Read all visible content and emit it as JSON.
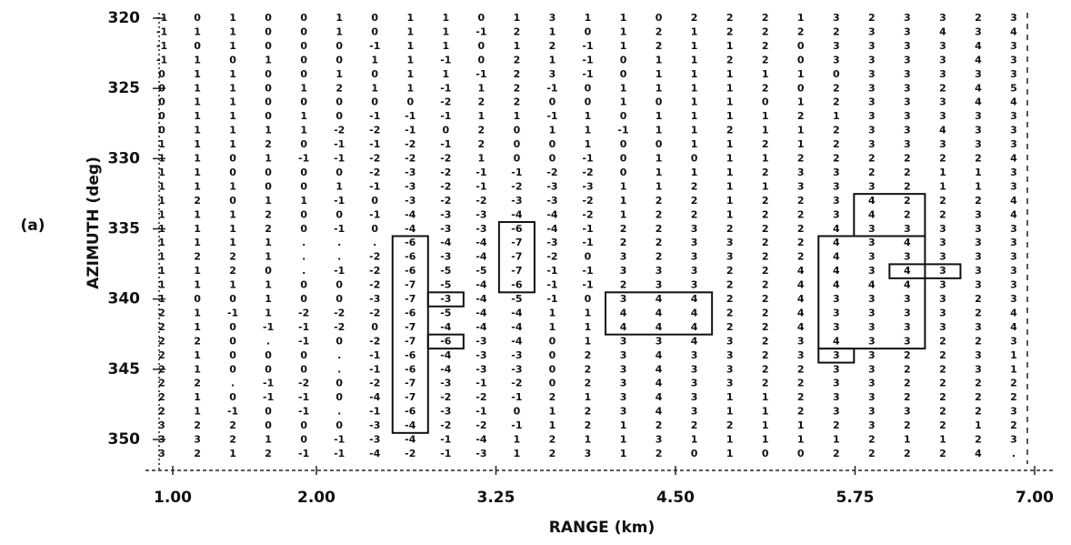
{
  "chart_data": {
    "type": "numeric-grid",
    "panel_label": "(a)",
    "xlabel": "RANGE (km)",
    "ylabel": "AZIMUTH (deg)",
    "xlim": [
      1,
      7
    ],
    "xticks": [
      {
        "value": 1,
        "label": "1.00"
      },
      {
        "value": 2,
        "label": "2.00"
      },
      3.25,
      {
        "value": 4.5,
        "label": "4.50"
      },
      5.75,
      {
        "value": 7,
        "label": "7.00"
      }
    ],
    "ylim": [
      320,
      350
    ],
    "yticks": [
      320,
      325,
      330,
      335,
      340,
      345,
      350
    ],
    "y_inverted": true,
    "rows": [
      [
        -1,
        0,
        1,
        0,
        0,
        1,
        0,
        1,
        1,
        0,
        1,
        3,
        1,
        1,
        0,
        2,
        2,
        2,
        1,
        3,
        2,
        3,
        3,
        2,
        3
      ],
      [
        -1,
        1,
        1,
        0,
        0,
        1,
        0,
        1,
        1,
        -1,
        2,
        1,
        0,
        1,
        2,
        1,
        2,
        2,
        2,
        2,
        3,
        3,
        4,
        3,
        4
      ],
      [
        -1,
        0,
        1,
        0,
        0,
        0,
        -1,
        1,
        1,
        0,
        1,
        2,
        -1,
        1,
        2,
        1,
        1,
        2,
        0,
        3,
        3,
        3,
        3,
        4,
        3
      ],
      [
        -1,
        1,
        0,
        1,
        0,
        0,
        1,
        1,
        -1,
        0,
        2,
        1,
        -1,
        0,
        1,
        1,
        2,
        2,
        0,
        3,
        3,
        3,
        3,
        4,
        3
      ],
      [
        0,
        1,
        1,
        0,
        0,
        1,
        0,
        1,
        1,
        -1,
        2,
        3,
        -1,
        0,
        1,
        1,
        1,
        1,
        1,
        0,
        3,
        3,
        3,
        3,
        3
      ],
      [
        0,
        1,
        1,
        0,
        1,
        2,
        1,
        1,
        -1,
        1,
        2,
        -1,
        0,
        1,
        1,
        1,
        1,
        2,
        0,
        2,
        3,
        3,
        2,
        4,
        5
      ],
      [
        0,
        1,
        1,
        0,
        0,
        0,
        0,
        0,
        -2,
        2,
        2,
        0,
        0,
        1,
        0,
        1,
        1,
        0,
        1,
        2,
        3,
        3,
        3,
        4,
        4
      ],
      [
        0,
        1,
        1,
        0,
        1,
        0,
        -1,
        -1,
        -1,
        1,
        1,
        -1,
        1,
        0,
        1,
        1,
        1,
        1,
        2,
        1,
        3,
        3,
        3,
        3,
        3
      ],
      [
        0,
        1,
        1,
        1,
        1,
        -2,
        -2,
        -1,
        0,
        2,
        0,
        1,
        1,
        -1,
        1,
        1,
        2,
        1,
        1,
        2,
        3,
        3,
        4,
        3,
        3
      ],
      [
        1,
        1,
        1,
        2,
        0,
        -1,
        -1,
        -2,
        -1,
        2,
        0,
        0,
        1,
        0,
        0,
        1,
        1,
        2,
        1,
        2,
        3,
        3,
        3,
        3,
        3
      ],
      [
        1,
        1,
        0,
        1,
        -1,
        -1,
        -2,
        -2,
        -2,
        1,
        0,
        0,
        -1,
        0,
        1,
        0,
        1,
        1,
        2,
        2,
        2,
        2,
        2,
        2,
        4
      ],
      [
        1,
        1,
        0,
        0,
        0,
        0,
        -2,
        -3,
        -2,
        -1,
        -1,
        -2,
        -2,
        0,
        1,
        1,
        1,
        2,
        3,
        3,
        2,
        2,
        1,
        1,
        3
      ],
      [
        1,
        1,
        1,
        0,
        0,
        1,
        -1,
        -3,
        -2,
        -1,
        -2,
        -3,
        -3,
        1,
        1,
        2,
        1,
        1,
        3,
        3,
        3,
        2,
        1,
        1,
        3
      ],
      [
        1,
        2,
        0,
        1,
        1,
        -1,
        0,
        -3,
        -2,
        -2,
        -3,
        -3,
        -2,
        1,
        2,
        2,
        1,
        2,
        2,
        3,
        4,
        2,
        2,
        2,
        4
      ],
      [
        1,
        1,
        1,
        2,
        0,
        0,
        -1,
        -4,
        -3,
        -3,
        -4,
        -4,
        -2,
        1,
        2,
        2,
        1,
        2,
        2,
        3,
        4,
        2,
        2,
        3,
        4
      ],
      [
        1,
        1,
        1,
        2,
        0,
        -1,
        0,
        -4,
        -3,
        -3,
        -6,
        -4,
        -1,
        2,
        2,
        3,
        2,
        2,
        2,
        4,
        3,
        3,
        3,
        3,
        3
      ],
      [
        1,
        1,
        1,
        1,
        ".",
        ".",
        ".",
        -6,
        -4,
        -4,
        -7,
        -3,
        -1,
        2,
        2,
        3,
        3,
        2,
        2,
        4,
        3,
        4,
        3,
        3,
        3
      ],
      [
        1,
        2,
        2,
        1,
        ".",
        ".",
        -2,
        -6,
        -3,
        -4,
        -7,
        -2,
        0,
        3,
        2,
        3,
        3,
        2,
        2,
        4,
        3,
        3,
        3,
        3,
        3
      ],
      [
        1,
        1,
        2,
        0,
        ".",
        -1,
        -2,
        -6,
        -5,
        -5,
        -7,
        -1,
        -1,
        3,
        3,
        3,
        2,
        2,
        4,
        4,
        3,
        4,
        3,
        3,
        3
      ],
      [
        1,
        1,
        1,
        1,
        0,
        0,
        -2,
        -7,
        -5,
        -4,
        -6,
        -1,
        -1,
        2,
        3,
        3,
        2,
        2,
        4,
        4,
        4,
        4,
        3,
        3,
        3
      ],
      [
        1,
        0,
        0,
        1,
        0,
        0,
        -3,
        -7,
        -3,
        -4,
        -5,
        -1,
        0,
        3,
        4,
        4,
        2,
        2,
        4,
        3,
        3,
        3,
        3,
        2,
        3
      ],
      [
        2,
        1,
        -1,
        1,
        -2,
        -2,
        -2,
        -6,
        -5,
        -4,
        -4,
        1,
        1,
        4,
        4,
        4,
        2,
        2,
        4,
        3,
        3,
        3,
        3,
        2,
        4
      ],
      [
        2,
        1,
        0,
        -1,
        -1,
        -2,
        0,
        -7,
        -4,
        -4,
        -4,
        1,
        1,
        4,
        4,
        4,
        2,
        2,
        4,
        3,
        3,
        3,
        3,
        3,
        4
      ],
      [
        2,
        2,
        0,
        ".",
        -1,
        0,
        -2,
        -7,
        -6,
        -3,
        -4,
        0,
        1,
        3,
        3,
        4,
        3,
        2,
        3,
        4,
        3,
        3,
        2,
        2,
        3
      ],
      [
        2,
        1,
        0,
        0,
        0,
        ".",
        -1,
        -6,
        -4,
        -3,
        -3,
        0,
        2,
        3,
        4,
        3,
        3,
        2,
        3,
        3,
        3,
        2,
        2,
        3,
        1
      ],
      [
        2,
        1,
        0,
        0,
        0,
        ".",
        -1,
        -6,
        -4,
        -3,
        -3,
        0,
        2,
        3,
        4,
        3,
        3,
        2,
        2,
        3,
        3,
        2,
        2,
        3,
        1
      ],
      [
        2,
        2,
        ".",
        -1,
        -2,
        0,
        -2,
        -7,
        -3,
        -1,
        -2,
        0,
        2,
        3,
        4,
        3,
        3,
        2,
        2,
        3,
        3,
        2,
        2,
        2,
        2
      ],
      [
        2,
        1,
        0,
        -1,
        -1,
        0,
        -4,
        -7,
        -2,
        -2,
        -1,
        2,
        1,
        3,
        4,
        3,
        1,
        1,
        2,
        3,
        3,
        2,
        2,
        2,
        2
      ],
      [
        2,
        1,
        -1,
        0,
        -1,
        ".",
        -1,
        -6,
        -3,
        -1,
        0,
        1,
        2,
        3,
        4,
        3,
        1,
        1,
        2,
        3,
        3,
        3,
        2,
        2,
        3
      ],
      [
        3,
        2,
        2,
        0,
        0,
        0,
        -3,
        -4,
        -2,
        -2,
        -1,
        1,
        2,
        1,
        2,
        2,
        2,
        1,
        1,
        2,
        3,
        2,
        2,
        1,
        2
      ],
      [
        3,
        3,
        2,
        1,
        0,
        -1,
        -3,
        -4,
        -1,
        -4,
        1,
        2,
        1,
        1,
        3,
        1,
        1,
        1,
        1,
        1,
        2,
        1,
        1,
        2,
        3
      ],
      [
        3,
        2,
        1,
        2,
        -1,
        -1,
        -4,
        -2,
        -1,
        -3,
        1,
        2,
        3,
        1,
        2,
        0,
        1,
        0,
        0,
        2,
        2,
        2,
        2,
        4,
        "."
      ]
    ]
  }
}
